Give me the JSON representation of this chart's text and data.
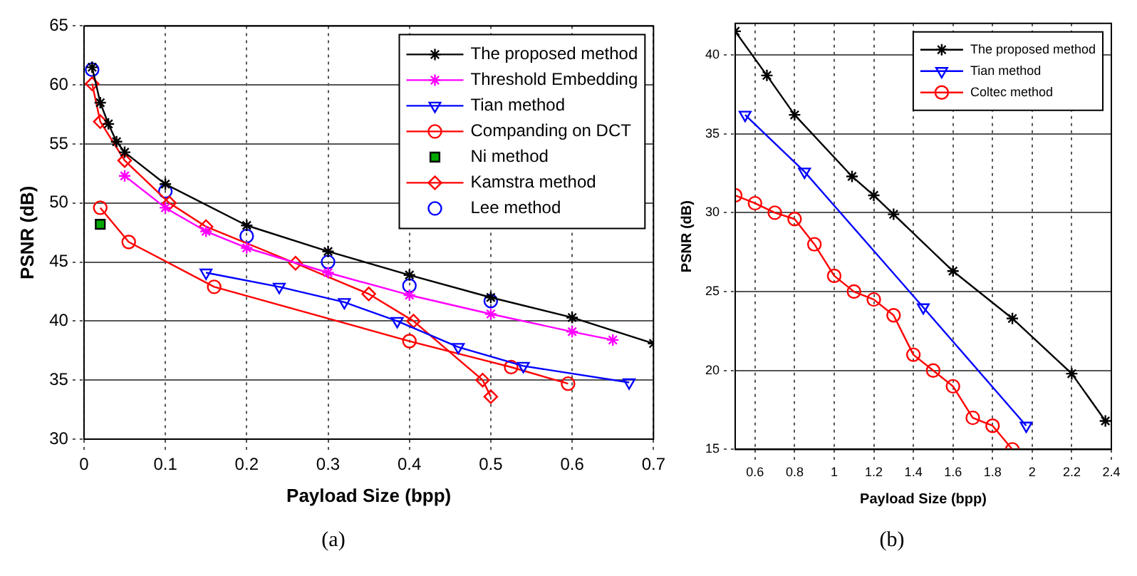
{
  "chart_data": [
    {
      "type": "line",
      "title": "(a)",
      "xlabel": "Payload Size (bpp)",
      "ylabel": "PSNR (dB)",
      "xlim": [
        0,
        0.7
      ],
      "xticks": [
        0,
        0.1,
        0.2,
        0.3,
        0.4,
        0.5,
        0.6,
        0.7
      ],
      "ylim": [
        30,
        65
      ],
      "yticks": [
        30,
        35,
        40,
        45,
        50,
        55,
        60,
        65
      ],
      "grid": true,
      "legend": "top right",
      "series": [
        {
          "name": "The proposed method",
          "color": "#000000",
          "marker": "cross",
          "x": [
            0.01,
            0.02,
            0.03,
            0.04,
            0.05,
            0.1,
            0.2,
            0.3,
            0.4,
            0.5,
            0.6,
            0.7
          ],
          "values": [
            61.5,
            58.5,
            56.7,
            55.2,
            54.3,
            51.6,
            48.1,
            45.9,
            43.9,
            42.0,
            40.3,
            38.1
          ]
        },
        {
          "name": "Threshold Embedding",
          "color": "#ff00ff",
          "marker": "cross",
          "x": [
            0.05,
            0.1,
            0.15,
            0.2,
            0.3,
            0.4,
            0.5,
            0.6,
            0.65
          ],
          "values": [
            52.3,
            49.6,
            47.6,
            46.2,
            44.1,
            42.2,
            40.6,
            39.1,
            38.4
          ]
        },
        {
          "name": "Tian method",
          "color": "#0000ff",
          "marker": "triangle",
          "x": [
            0.15,
            0.24,
            0.32,
            0.385,
            0.46,
            0.54,
            0.67
          ],
          "values": [
            44.1,
            42.9,
            41.6,
            40.0,
            37.8,
            36.2,
            34.8
          ]
        },
        {
          "name": "Companding on DCT",
          "color": "#ff0000",
          "marker": "circle",
          "x": [
            0.02,
            0.055,
            0.16,
            0.4,
            0.525,
            0.595
          ],
          "values": [
            49.6,
            46.7,
            42.9,
            38.3,
            36.1,
            34.7
          ]
        },
        {
          "name": "Ni method",
          "type": "scatter",
          "color": "#00aa00",
          "marker": "square",
          "x": [
            0.02
          ],
          "values": [
            48.2
          ]
        },
        {
          "name": "Kamstra method",
          "color": "#ff0000",
          "marker": "diamond",
          "x": [
            0.01,
            0.02,
            0.05,
            0.105,
            0.15,
            0.26,
            0.35,
            0.405,
            0.49,
            0.5
          ],
          "values": [
            60.1,
            56.9,
            53.6,
            50.0,
            48.0,
            44.9,
            42.3,
            40.0,
            35.0,
            33.6
          ]
        },
        {
          "name": "Lee method",
          "type": "scatter",
          "color": "#0000ff",
          "marker": "circle",
          "x": [
            0.01,
            0.1,
            0.2,
            0.3,
            0.4,
            0.5
          ],
          "values": [
            61.3,
            51.0,
            47.2,
            45.0,
            43.0,
            41.7
          ]
        }
      ]
    },
    {
      "type": "line",
      "title": "(b)",
      "xlabel": "Payload Size (bpp)",
      "ylabel": "PSNR (dB)",
      "xlim": [
        0.5,
        2.4
      ],
      "xticks": [
        0.6,
        0.8,
        1,
        1.2,
        1.4,
        1.6,
        1.8,
        2,
        2.2,
        2.4
      ],
      "ylim": [
        15,
        42
      ],
      "yticks": [
        15,
        20,
        25,
        30,
        35,
        40
      ],
      "grid": true,
      "legend": "top right",
      "series": [
        {
          "name": "The proposed method",
          "color": "#000000",
          "marker": "cross",
          "x": [
            0.5,
            0.66,
            0.8,
            1.09,
            1.2,
            1.3,
            1.6,
            1.9,
            2.2,
            2.37
          ],
          "values": [
            41.5,
            38.7,
            36.2,
            32.3,
            31.1,
            29.9,
            26.3,
            23.3,
            19.8,
            16.8
          ]
        },
        {
          "name": "Tian method",
          "color": "#0000ff",
          "marker": "triangle",
          "x": [
            0.55,
            0.85,
            1.45,
            1.97
          ],
          "values": [
            36.2,
            32.6,
            24.0,
            16.5
          ]
        },
        {
          "name": "Coltec method",
          "color": "#ff0000",
          "marker": "circle",
          "x": [
            0.5,
            0.6,
            0.7,
            0.8,
            0.9,
            1.0,
            1.1,
            1.2,
            1.3,
            1.4,
            1.5,
            1.6,
            1.7,
            1.8,
            1.9
          ],
          "values": [
            31.1,
            30.6,
            30.0,
            29.6,
            28.0,
            26.0,
            25.0,
            24.5,
            23.5,
            21.0,
            20.0,
            19.0,
            17.0,
            16.5,
            15.0
          ]
        }
      ]
    }
  ]
}
